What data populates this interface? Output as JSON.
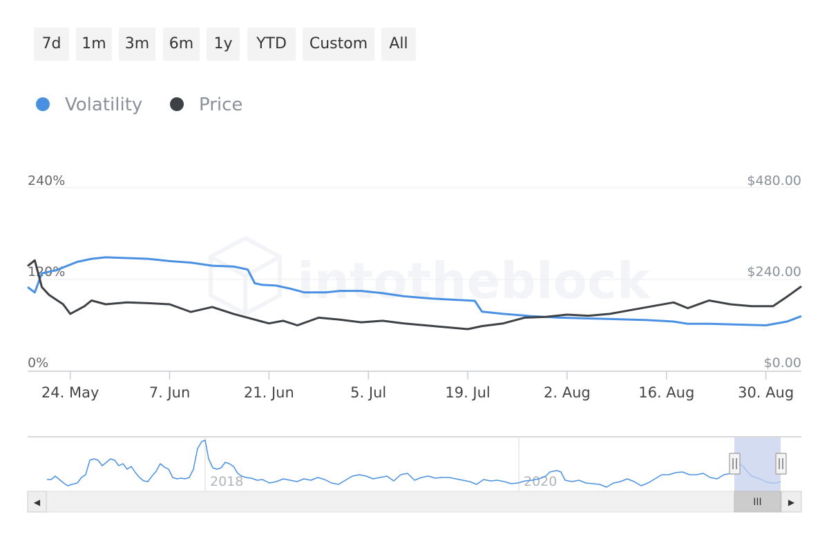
{
  "range_selector": {
    "buttons": [
      "7d",
      "1m",
      "3m",
      "6m",
      "1y",
      "YTD",
      "Custom",
      "All"
    ]
  },
  "legend": {
    "items": [
      {
        "label": "Volatility",
        "color": "#4a90e2"
      },
      {
        "label": "Price",
        "color": "#3d4045"
      }
    ]
  },
  "watermark": "intotheblock",
  "colors": {
    "volatility": "#4a90e2",
    "price": "#3d4045",
    "navigator_mask": "#c5d0ec",
    "scrollbar": "#f0f0f0"
  },
  "chart_data": {
    "type": "line",
    "x_axis": {
      "type": "datetime",
      "range": [
        "2021-05-18",
        "2021-09-04"
      ],
      "tick_labels": [
        "24. May",
        "7. Jun",
        "21. Jun",
        "5. Jul",
        "19. Jul",
        "2. Aug",
        "16. Aug",
        "30. Aug"
      ],
      "tick_dates": [
        "2021-05-24",
        "2021-06-07",
        "2021-06-21",
        "2021-07-05",
        "2021-07-19",
        "2021-08-02",
        "2021-08-16",
        "2021-08-30"
      ]
    },
    "y_axis_left": {
      "ticks": [
        "0%",
        "120%",
        "240%"
      ],
      "range": [
        0,
        240
      ],
      "unit": "%"
    },
    "y_axis_right": {
      "ticks": [
        "$0.00",
        "$240.00",
        "$480.00"
      ],
      "range": [
        0,
        480
      ],
      "unit": "$"
    },
    "grid": true,
    "legend_position": "top-left",
    "series": [
      {
        "name": "Volatility",
        "axis": "left",
        "x": [
          "2021-05-18",
          "2021-05-19",
          "2021-05-20",
          "2021-05-22",
          "2021-05-25",
          "2021-05-27",
          "2021-05-29",
          "2021-06-01",
          "2021-06-04",
          "2021-06-07",
          "2021-06-10",
          "2021-06-13",
          "2021-06-16",
          "2021-06-18",
          "2021-06-19",
          "2021-06-20",
          "2021-06-22",
          "2021-06-24",
          "2021-06-26",
          "2021-06-29",
          "2021-07-01",
          "2021-07-04",
          "2021-07-07",
          "2021-07-10",
          "2021-07-14",
          "2021-07-18",
          "2021-07-20",
          "2021-07-21",
          "2021-07-24",
          "2021-07-28",
          "2021-08-01",
          "2021-08-05",
          "2021-08-09",
          "2021-08-13",
          "2021-08-17",
          "2021-08-19",
          "2021-08-22",
          "2021-08-26",
          "2021-08-30",
          "2021-09-02",
          "2021-09-04"
        ],
        "values": [
          110,
          103,
          128,
          132,
          143,
          147,
          149,
          148,
          147,
          144,
          142,
          138,
          137,
          133,
          115,
          113,
          112,
          108,
          103,
          103,
          105,
          105,
          102,
          98,
          95,
          93,
          92,
          78,
          75,
          72,
          70,
          69,
          68,
          67,
          65,
          62,
          62,
          61,
          60,
          65,
          72
        ]
      },
      {
        "name": "Price",
        "axis": "right",
        "x": [
          "2021-05-18",
          "2021-05-19",
          "2021-05-20",
          "2021-05-21",
          "2021-05-23",
          "2021-05-24",
          "2021-05-26",
          "2021-05-27",
          "2021-05-29",
          "2021-06-01",
          "2021-06-04",
          "2021-06-07",
          "2021-06-10",
          "2021-06-13",
          "2021-06-16",
          "2021-06-18",
          "2021-06-20",
          "2021-06-21",
          "2021-06-23",
          "2021-06-25",
          "2021-06-28",
          "2021-07-01",
          "2021-07-04",
          "2021-07-07",
          "2021-07-10",
          "2021-07-13",
          "2021-07-16",
          "2021-07-19",
          "2021-07-21",
          "2021-07-24",
          "2021-07-27",
          "2021-07-30",
          "2021-08-02",
          "2021-08-05",
          "2021-08-08",
          "2021-08-11",
          "2021-08-14",
          "2021-08-17",
          "2021-08-19",
          "2021-08-22",
          "2021-08-25",
          "2021-08-28",
          "2021-08-31",
          "2021-09-02",
          "2021-09-04"
        ],
        "values": [
          275,
          290,
          220,
          200,
          175,
          150,
          170,
          185,
          175,
          180,
          178,
          175,
          155,
          168,
          150,
          140,
          130,
          125,
          132,
          120,
          140,
          135,
          128,
          132,
          125,
          120,
          115,
          110,
          118,
          125,
          140,
          142,
          148,
          145,
          150,
          160,
          170,
          180,
          165,
          185,
          175,
          170,
          170,
          195,
          222
        ]
      }
    ]
  },
  "navigator": {
    "year_labels": [
      "2018",
      "2020"
    ]
  },
  "scrollbar": {
    "left_arrow": "◀",
    "right_arrow": "▶",
    "thumb_grip": "III"
  }
}
